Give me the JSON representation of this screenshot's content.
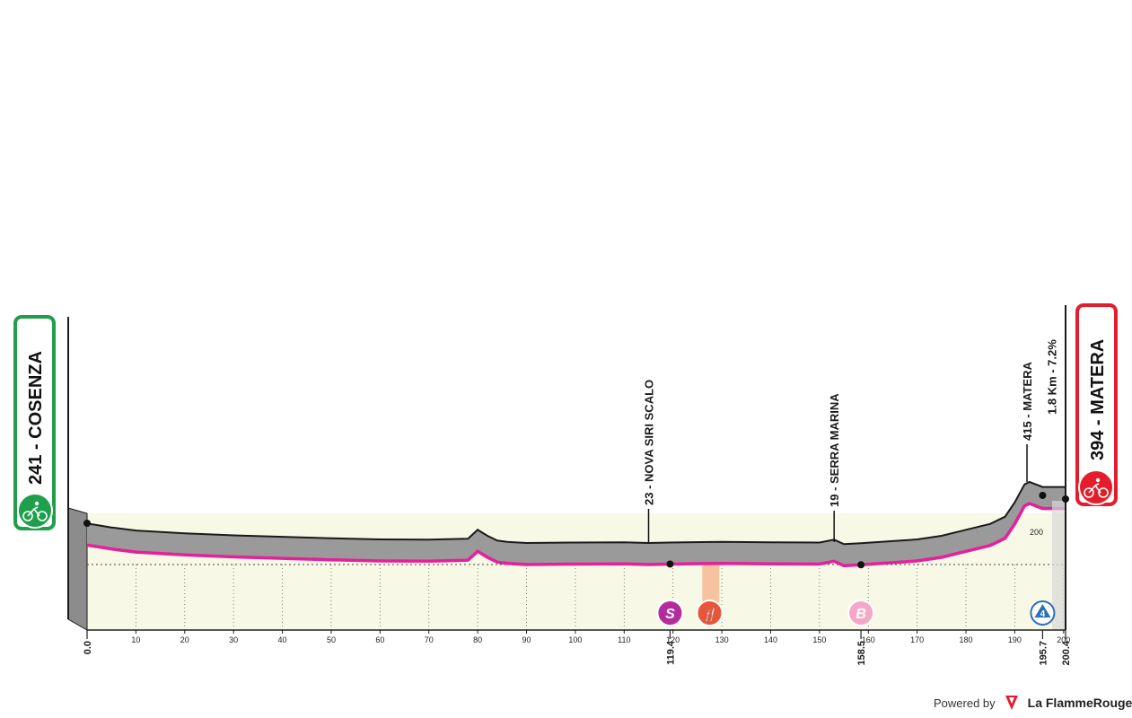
{
  "chart_data": {
    "type": "area",
    "x_unit": "km",
    "xlim": [
      0,
      200.4
    ],
    "x_ticks": [
      10,
      20,
      30,
      40,
      50,
      60,
      70,
      80,
      90,
      100,
      110,
      120,
      130,
      140,
      150,
      160,
      170,
      180,
      190,
      200
    ],
    "y_ticks": [
      200
    ],
    "elevation_profile": {
      "x": [
        0,
        2,
        5,
        10,
        20,
        30,
        40,
        50,
        60,
        70,
        78,
        80,
        82,
        84,
        86,
        90,
        100,
        110,
        115,
        119.4,
        130,
        140,
        150,
        153,
        155,
        158.5,
        165,
        170,
        175,
        180,
        185,
        188,
        190,
        192,
        193,
        195.7,
        200.4
      ],
      "y": [
        241,
        235,
        225,
        212,
        200,
        192,
        186,
        180,
        175,
        174,
        178,
        215,
        190,
        170,
        165,
        160,
        162,
        163,
        160,
        162,
        165,
        163,
        162,
        174,
        155,
        159,
        168,
        175,
        190,
        215,
        240,
        270,
        330,
        405,
        415,
        394,
        394
      ]
    },
    "start": {
      "elevation": "241",
      "name": "COSENZA"
    },
    "finish": {
      "elevation": "394",
      "name": "MATERA"
    },
    "km_markers": [
      {
        "km": 0.0,
        "label": "0.0"
      },
      {
        "km": 119.4,
        "label": "119.4"
      },
      {
        "km": 158.5,
        "label": "158.5"
      },
      {
        "km": 195.7,
        "label": "195.7"
      },
      {
        "km": 200.4,
        "label": "200.4"
      }
    ],
    "annotations": [
      {
        "km": 115,
        "label": "23 - NOVA SIRI SCALO"
      },
      {
        "km": 153,
        "label": "19 - SERRA MARINA"
      },
      {
        "km": 192.5,
        "label": "415 - MATERA"
      },
      {
        "km": 195.7,
        "label": "1.8 Km - 7.2%"
      }
    ],
    "points": [
      {
        "km": 119.4,
        "type": "sprint",
        "symbol": "S",
        "color": "#b42c9c"
      },
      {
        "km": 127.5,
        "type": "feed",
        "symbol": "🍴",
        "color": "#e9553a"
      },
      {
        "km": 158.5,
        "type": "bonus",
        "symbol": "B",
        "color": "#f5a8c6"
      },
      {
        "km": 195.7,
        "type": "climb",
        "symbol": "4",
        "color": "#2b6fb8"
      }
    ],
    "feed_zone": [
      126,
      129.5
    ],
    "colors": {
      "profile_fill": "#9a9a9a",
      "profile_stroke": "#1a1a1a",
      "route_line": "#e4209a",
      "base_fill": "#f7f8e6",
      "start_border": "#1f9e4b",
      "finish_border": "#e31d2b"
    }
  },
  "credit": {
    "powered_by": "Powered by",
    "brand": "La FlammeRouge"
  }
}
